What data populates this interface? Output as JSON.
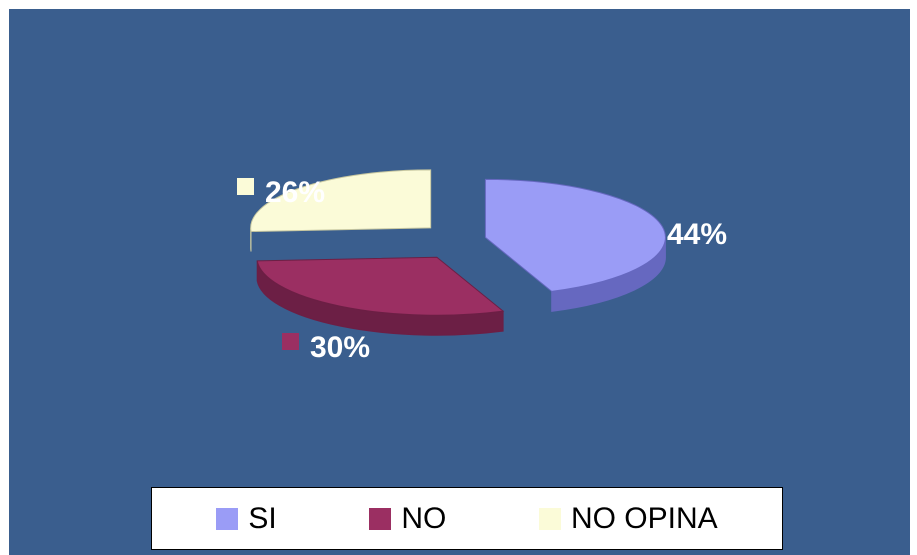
{
  "chart_data": {
    "type": "pie",
    "categories": [
      "SI",
      "NO",
      "NO OPINA"
    ],
    "values": [
      44,
      30,
      26
    ],
    "data_labels": [
      "44%",
      "30%",
      "26%"
    ],
    "colors": [
      "#9a9cf6",
      "#9b2f62",
      "#fbfbd8"
    ],
    "side_colors": [
      "#6668c0",
      "#6c1f45",
      "#c7c7a0"
    ],
    "legend_position": "bottom",
    "background": "#3a5e8e",
    "exploded": true,
    "style": "3d"
  },
  "legend": {
    "items": [
      {
        "label": "SI",
        "color": "#9a9cf6"
      },
      {
        "label": "NO",
        "color": "#9b2f62"
      },
      {
        "label": "NO OPINA",
        "color": "#fbfbd8"
      }
    ]
  }
}
